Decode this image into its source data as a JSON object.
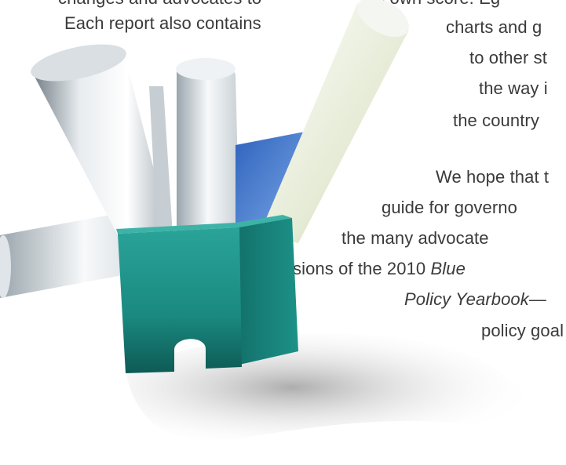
{
  "left_column": {
    "cut_line": "changes and advocates to",
    "line_1": "Each report also contains"
  },
  "right_column": {
    "cut_line": "its own score. Eg",
    "lines": [
      "charts and g",
      "to other st",
      "the way i",
      "the country"
    ],
    "paragraph_2": [
      "We hope that t",
      "guide for governo",
      "the many advocate"
    ],
    "line_sions_prefix": "sions of the 2010 ",
    "line_sions_italic": "Blue",
    "line_policy_italic": "Policy Yearbook",
    "line_policy_dash": "—",
    "line_goal": "policy goal"
  },
  "illustration": {
    "description_icon": "box-of-rolled-papers-illustration",
    "colors": {
      "box": "#1a8a80",
      "box_dark": "#0e5a55",
      "paper_light": "#f2f4f5",
      "paper_shadow": "#8f9ba3",
      "blue_sheet": "#3a6fc4",
      "green_tint": "#d6e8a8"
    }
  }
}
